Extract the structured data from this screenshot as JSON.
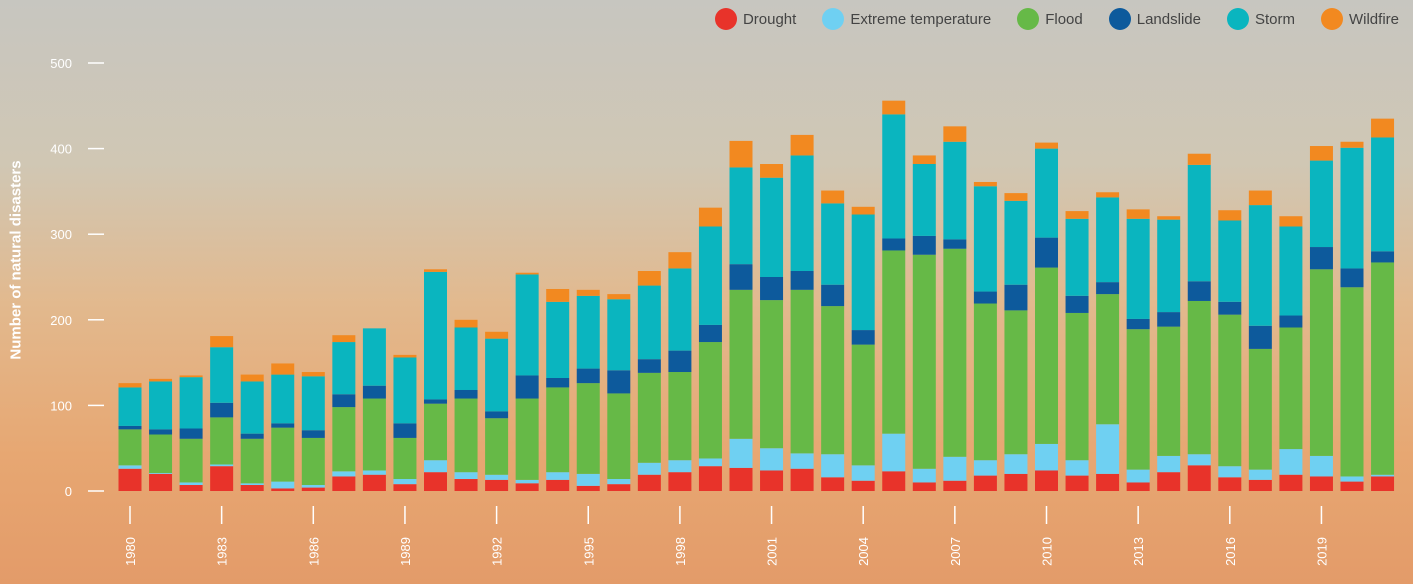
{
  "chart_data": {
    "type": "bar",
    "stacked": true,
    "xlabel": "",
    "ylabel": "Number of natural disasters",
    "ylim": [
      0,
      500
    ],
    "yticks": [
      0,
      100,
      200,
      300,
      400,
      500
    ],
    "grid": false,
    "legend_position": "top-right",
    "categories": [
      "1980",
      "1981",
      "1982",
      "1983",
      "1984",
      "1985",
      "1986",
      "1987",
      "1988",
      "1989",
      "1990",
      "1991",
      "1992",
      "1993",
      "1994",
      "1995",
      "1996",
      "1997",
      "1998",
      "1999",
      "2000",
      "2001",
      "2002",
      "2003",
      "2004",
      "2005",
      "2006",
      "2007",
      "2008",
      "2009",
      "2010",
      "2011",
      "2012",
      "2013",
      "2014",
      "2015",
      "2016",
      "2017",
      "2018",
      "2019",
      "2020",
      "2021"
    ],
    "xtick_labels": [
      "1980",
      "1983",
      "1986",
      "1989",
      "1992",
      "1995",
      "1998",
      "2001",
      "2004",
      "2007",
      "2010",
      "2013",
      "2016",
      "2019"
    ],
    "series": [
      {
        "name": "Drought",
        "color": "#e8332a",
        "values": [
          26,
          20,
          7,
          29,
          7,
          3,
          4,
          17,
          19,
          8,
          22,
          14,
          13,
          9,
          13,
          6,
          8,
          19,
          22,
          29,
          27,
          24,
          26,
          16,
          12,
          23,
          10,
          12,
          18,
          20,
          24,
          18,
          20,
          10,
          22,
          30,
          16,
          13,
          19,
          17,
          11,
          17
        ]
      },
      {
        "name": "Extreme temperature",
        "color": "#6fd0f2",
        "values": [
          4,
          1,
          3,
          2,
          2,
          8,
          3,
          6,
          5,
          6,
          14,
          8,
          6,
          4,
          9,
          14,
          6,
          14,
          14,
          9,
          34,
          26,
          18,
          27,
          18,
          44,
          16,
          28,
          18,
          23,
          31,
          18,
          58,
          15,
          19,
          13,
          13,
          12,
          30,
          24,
          6,
          2
        ]
      },
      {
        "name": "Flood",
        "color": "#66b947",
        "values": [
          42,
          45,
          51,
          55,
          52,
          63,
          55,
          75,
          84,
          48,
          66,
          86,
          66,
          95,
          99,
          106,
          100,
          105,
          103,
          136,
          174,
          173,
          191,
          173,
          141,
          214,
          250,
          243,
          183,
          168,
          206,
          172,
          152,
          164,
          151,
          179,
          177,
          141,
          142,
          218,
          221,
          248
        ]
      },
      {
        "name": "Landslide",
        "color": "#0d5a9c",
        "values": [
          4,
          6,
          12,
          17,
          6,
          5,
          9,
          15,
          15,
          17,
          5,
          10,
          8,
          27,
          11,
          17,
          27,
          16,
          25,
          20,
          30,
          27,
          22,
          25,
          17,
          14,
          22,
          11,
          14,
          30,
          35,
          20,
          14,
          12,
          17,
          23,
          15,
          27,
          14,
          26,
          22,
          13
        ]
      },
      {
        "name": "Storm",
        "color": "#0ab5bf",
        "values": [
          45,
          56,
          60,
          65,
          61,
          57,
          63,
          61,
          67,
          77,
          149,
          73,
          85,
          118,
          89,
          85,
          83,
          86,
          96,
          115,
          113,
          116,
          135,
          95,
          135,
          145,
          84,
          114,
          123,
          98,
          104,
          90,
          99,
          117,
          108,
          136,
          95,
          141,
          104,
          101,
          141,
          133
        ]
      },
      {
        "name": "Wildfire",
        "color": "#f28920",
        "values": [
          5,
          3,
          2,
          13,
          8,
          13,
          5,
          8,
          0,
          3,
          3,
          9,
          8,
          2,
          15,
          7,
          6,
          17,
          19,
          22,
          31,
          16,
          24,
          15,
          9,
          16,
          10,
          18,
          5,
          9,
          7,
          9,
          6,
          11,
          4,
          13,
          12,
          17,
          12,
          17,
          7,
          22
        ]
      }
    ]
  }
}
